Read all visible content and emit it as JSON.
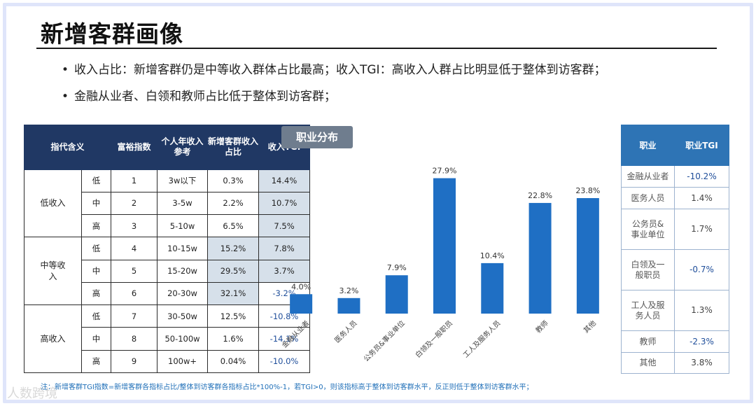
{
  "title": "新增客群画像",
  "bullets": [
    "收入占比：新增客群仍是中等收入群体占比最高；收入TGI：高收入人群占比明显低于整体到访客群；",
    "金融从业者、白领和教师占比低于整体到访客群；"
  ],
  "bullet_marker": "•",
  "income_table": {
    "headers": [
      "指代含义",
      "富裕指数",
      "个人年收入参考",
      "新增客群收入占比",
      "收入TGI"
    ],
    "groups": [
      "低收入",
      "中等收入",
      "高收入"
    ],
    "rows": [
      {
        "level": "低",
        "index": "1",
        "income": "3w以下",
        "share": "0.3%",
        "tgi": "14.4%"
      },
      {
        "level": "中",
        "index": "2",
        "income": "3-5w",
        "share": "2.2%",
        "tgi": "10.7%"
      },
      {
        "level": "高",
        "index": "3",
        "income": "5-10w",
        "share": "6.5%",
        "tgi": "7.5%"
      },
      {
        "level": "低",
        "index": "4",
        "income": "10-15w",
        "share": "15.2%",
        "tgi": "7.8%"
      },
      {
        "level": "中",
        "index": "5",
        "income": "15-20w",
        "share": "29.5%",
        "tgi": "3.7%"
      },
      {
        "level": "高",
        "index": "6",
        "income": "20-30w",
        "share": "32.1%",
        "tgi": "-3.2%"
      },
      {
        "level": "低",
        "index": "7",
        "income": "30-50w",
        "share": "12.5%",
        "tgi": "-10.8%"
      },
      {
        "level": "中",
        "index": "8",
        "income": "50-100w",
        "share": "1.6%",
        "tgi": "-14.1%"
      },
      {
        "level": "高",
        "index": "9",
        "income": "100w+",
        "share": "0.04%",
        "tgi": "-10.0%"
      }
    ]
  },
  "chart_tag": "职业分布",
  "chart_data": {
    "type": "bar",
    "title": "职业分布",
    "categories": [
      "金融从业者",
      "医务人员",
      "公务员&事业单位",
      "白领及一般职员",
      "工人及服务人员",
      "教师",
      "其他"
    ],
    "values": [
      4.0,
      3.2,
      7.9,
      27.9,
      10.4,
      22.8,
      23.8
    ],
    "labels": [
      "4.0%",
      "3.2%",
      "7.9%",
      "27.9%",
      "10.4%",
      "22.8%",
      "23.8%"
    ],
    "ylim": [
      0,
      30
    ],
    "color": "#1f6fc4",
    "xlabel": "",
    "ylabel": ""
  },
  "occ_table": {
    "headers": [
      "职业",
      "职业TGI"
    ],
    "rows": [
      {
        "job": "金融从业者",
        "tgi": "-10.2%"
      },
      {
        "job": "医务人员",
        "tgi": "1.4%"
      },
      {
        "job": "公务员&事业单位",
        "tgi": "1.7%"
      },
      {
        "job": "白领及一般职员",
        "tgi": "-0.7%"
      },
      {
        "job": "工人及服务人员",
        "tgi": "1.3%"
      },
      {
        "job": "教师",
        "tgi": "-2.3%"
      },
      {
        "job": "其他",
        "tgi": "3.8%"
      }
    ]
  },
  "note": "注：新增客群TGI指数=新增客群各指标占比/整体到访客群各指标占比*100%-1，若TGI>0，则该指标高于整体到访客群水平，反正则低于整体到访客群水平；",
  "watermark": "人数跨境"
}
